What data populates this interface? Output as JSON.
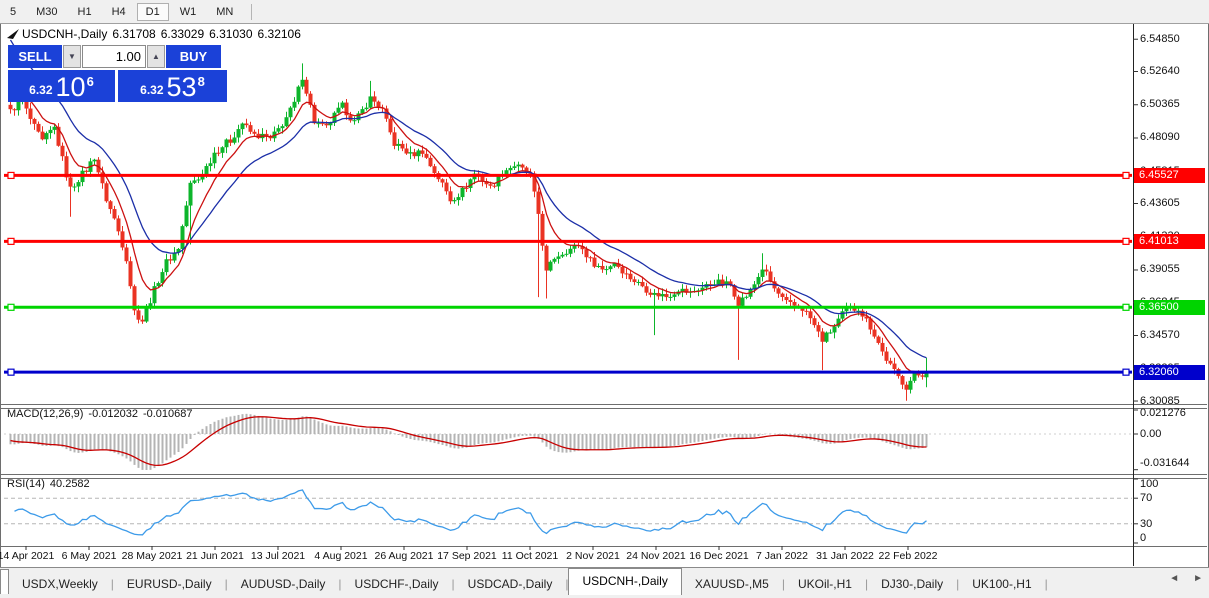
{
  "toolbar": {
    "timeframes": [
      {
        "label": "5",
        "active": false
      },
      {
        "label": "M30",
        "active": false
      },
      {
        "label": "H1",
        "active": false
      },
      {
        "label": "H4",
        "active": false
      },
      {
        "label": "D1",
        "active": true
      },
      {
        "label": "W1",
        "active": false
      },
      {
        "label": "MN",
        "active": false
      }
    ]
  },
  "header": {
    "symbol_period": "USDCNH-,Daily",
    "open": "6.31708",
    "high": "6.33029",
    "low": "6.31030",
    "close": "6.32106"
  },
  "trade": {
    "sell_label": "SELL",
    "buy_label": "BUY",
    "volume": "1.00",
    "sell_price": {
      "small": "6.32",
      "big": "10",
      "sup": "6"
    },
    "buy_price": {
      "small": "6.32",
      "big": "53",
      "sup": "8"
    }
  },
  "chart_data": {
    "type": "candlestick",
    "symbol": "USDCNH-",
    "timeframe": "Daily",
    "current_ohlc": {
      "open": 6.31708,
      "high": 6.33029,
      "low": 6.3103,
      "close": 6.32106
    },
    "price_axis": {
      "visible_range": [
        6.2995,
        6.5555
      ],
      "ticks": [
        "6.54850",
        "6.52640",
        "6.50365",
        "6.48090",
        "6.45815",
        "6.43605",
        "6.41330",
        "6.39055",
        "6.36845",
        "6.34570",
        "6.32295",
        "6.30085"
      ]
    },
    "time_axis": {
      "labels": [
        "14 Apr 2021",
        "6 May 2021",
        "28 May 2021",
        "21 Jun 2021",
        "13 Jul 2021",
        "4 Aug 2021",
        "26 Aug 2021",
        "17 Sep 2021",
        "11 Oct 2021",
        "2 Nov 2021",
        "24 Nov 2021",
        "16 Dec 2021",
        "7 Jan 2022",
        "31 Jan 2022",
        "22 Feb 2022"
      ]
    },
    "levels": [
      {
        "price": 6.45527,
        "label": "6.45527",
        "color": "#ff0000"
      },
      {
        "price": 6.41013,
        "label": "6.41013",
        "color": "#ff0000"
      },
      {
        "price": 6.365,
        "label": "6.36500",
        "color": "#00d400"
      },
      {
        "price": 6.3206,
        "label": "6.32060",
        "color": "#0000cc"
      }
    ],
    "candles": {
      "count": 230,
      "up_color": "#0db52b",
      "down_color": "#ea3323",
      "close_anchors": [
        [
          0,
          6.498
        ],
        [
          3,
          6.506
        ],
        [
          8,
          6.478
        ],
        [
          11,
          6.487
        ],
        [
          15,
          6.447
        ],
        [
          19,
          6.458
        ],
        [
          21,
          6.468
        ],
        [
          24,
          6.44
        ],
        [
          26,
          6.425
        ],
        [
          29,
          6.398
        ],
        [
          31,
          6.363
        ],
        [
          33,
          6.357
        ],
        [
          36,
          6.376
        ],
        [
          39,
          6.396
        ],
        [
          42,
          6.407
        ],
        [
          45,
          6.448
        ],
        [
          47,
          6.452
        ],
        [
          49,
          6.462
        ],
        [
          51,
          6.472
        ],
        [
          55,
          6.478
        ],
        [
          58,
          6.492
        ],
        [
          61,
          6.483
        ],
        [
          65,
          6.479
        ],
        [
          68,
          6.492
        ],
        [
          71,
          6.504
        ],
        [
          73,
          6.522
        ],
        [
          76,
          6.493
        ],
        [
          79,
          6.488
        ],
        [
          83,
          6.502
        ],
        [
          86,
          6.493
        ],
        [
          90,
          6.507
        ],
        [
          93,
          6.5
        ],
        [
          96,
          6.478
        ],
        [
          100,
          6.468
        ],
        [
          103,
          6.473
        ],
        [
          106,
          6.458
        ],
        [
          110,
          6.438
        ],
        [
          113,
          6.446
        ],
        [
          116,
          6.456
        ],
        [
          120,
          6.447
        ],
        [
          123,
          6.459
        ],
        [
          126,
          6.461
        ],
        [
          130,
          6.456
        ],
        [
          132,
          6.43
        ],
        [
          134,
          6.388
        ],
        [
          136,
          6.398
        ],
        [
          139,
          6.405
        ],
        [
          142,
          6.408
        ],
        [
          145,
          6.396
        ],
        [
          148,
          6.392
        ],
        [
          151,
          6.396
        ],
        [
          154,
          6.386
        ],
        [
          158,
          6.381
        ],
        [
          161,
          6.373
        ],
        [
          164,
          6.372
        ],
        [
          167,
          6.379
        ],
        [
          170,
          6.374
        ],
        [
          173,
          6.378
        ],
        [
          176,
          6.384
        ],
        [
          180,
          6.379
        ],
        [
          182,
          6.368
        ],
        [
          185,
          6.377
        ],
        [
          188,
          6.391
        ],
        [
          191,
          6.377
        ],
        [
          194,
          6.369
        ],
        [
          198,
          6.363
        ],
        [
          200,
          6.357
        ],
        [
          203,
          6.344
        ],
        [
          206,
          6.351
        ],
        [
          209,
          6.363
        ],
        [
          212,
          6.366
        ],
        [
          215,
          6.351
        ],
        [
          218,
          6.334
        ],
        [
          221,
          6.322
        ],
        [
          224,
          6.31
        ],
        [
          226,
          6.317
        ],
        [
          229,
          6.32106
        ]
      ],
      "spikes": [
        {
          "i": 15,
          "low": 6.427
        },
        {
          "i": 45,
          "low": 6.408
        },
        {
          "i": 73,
          "high": 6.532
        },
        {
          "i": 90,
          "high": 6.52
        },
        {
          "i": 132,
          "low": 6.372
        },
        {
          "i": 134,
          "low": 6.371
        },
        {
          "i": 161,
          "low": 6.346
        },
        {
          "i": 182,
          "low": 6.329
        },
        {
          "i": 188,
          "high": 6.402
        },
        {
          "i": 203,
          "low": 6.322
        },
        {
          "i": 224,
          "low": 6.301
        }
      ]
    },
    "overlays": {
      "ma_fast_color": "#cc1111",
      "ma_slow_color": "#1c2fa8"
    },
    "indicators": {
      "macd": {
        "label": "MACD(12,26,9)",
        "value_main": "-0.012032",
        "value_signal": "-0.010687",
        "params": [
          12,
          26,
          9
        ],
        "axis": {
          "max": 0.021276,
          "zero_label": "0.00",
          "min": -0.031644
        },
        "axis_labels": [
          "0.021276",
          "0.00",
          "-0.031644"
        ],
        "histogram_color": "#b4b4b4",
        "signal_color": "#c80000"
      },
      "rsi": {
        "label": "RSI(14)",
        "value": "40.2582",
        "period": 14,
        "axis_ticks": [
          "100",
          "70",
          "30",
          "0"
        ],
        "guide_levels": [
          70,
          30
        ],
        "line_color": "#3d9be9"
      }
    }
  },
  "tabs": {
    "items": [
      {
        "label": "USDX,Weekly",
        "active": false
      },
      {
        "label": "EURUSD-,Daily",
        "active": false
      },
      {
        "label": "AUDUSD-,Daily",
        "active": false
      },
      {
        "label": "USDCHF-,Daily",
        "active": false
      },
      {
        "label": "USDCAD-,Daily",
        "active": false
      },
      {
        "label": "USDCNH-,Daily",
        "active": true
      },
      {
        "label": "XAUUSD-,M5",
        "active": false
      },
      {
        "label": "UKOil-,H1",
        "active": false
      },
      {
        "label": "DJ30-,Daily",
        "active": false
      },
      {
        "label": "UK100-,H1",
        "active": false
      }
    ],
    "scroll_left_icon": "◄",
    "scroll_right_icon": "►"
  }
}
